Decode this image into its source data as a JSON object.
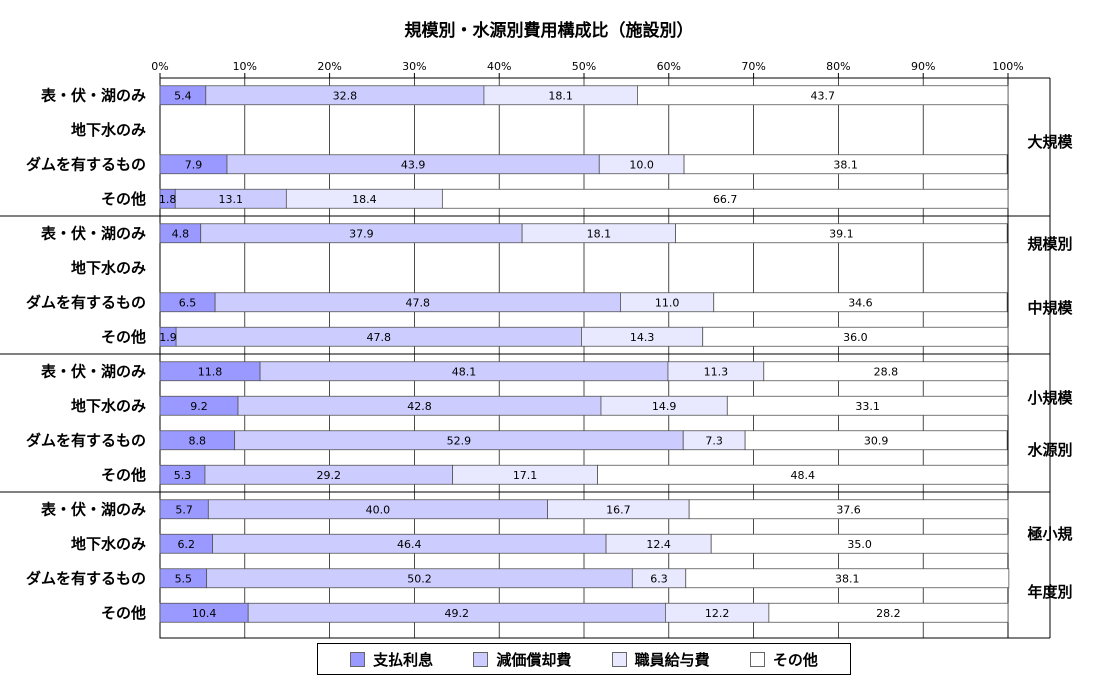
{
  "chart_data": {
    "type": "bar",
    "orientation": "horizontal",
    "stacked": true,
    "title": "規模別・水源別費用構成比（施設別）",
    "x_tick_labels": [
      "0%",
      "10%",
      "20%",
      "30%",
      "40%",
      "50%",
      "60%",
      "70%",
      "80%",
      "90%",
      "100%"
    ],
    "xlim": [
      0,
      100
    ],
    "grid": true,
    "legend_position": "bottom",
    "categories": [
      "表・伏・湖のみ",
      "地下水のみ",
      "ダムを有するもの",
      "その他"
    ],
    "groups": [
      {
        "label": "大規模",
        "rows": [
          {
            "category": "表・伏・湖のみ",
            "values": [
              5.4,
              32.8,
              18.1,
              43.7
            ]
          },
          {
            "category": "地下水のみ",
            "values": null
          },
          {
            "category": "ダムを有するもの",
            "values": [
              7.9,
              43.9,
              10.0,
              38.1
            ]
          },
          {
            "category": "その他",
            "values": [
              1.8,
              13.1,
              18.4,
              66.7
            ]
          }
        ]
      },
      {
        "label": "中規模",
        "rows": [
          {
            "category": "表・伏・湖のみ",
            "values": [
              4.8,
              37.9,
              18.1,
              39.1
            ]
          },
          {
            "category": "地下水のみ",
            "values": null
          },
          {
            "category": "ダムを有するもの",
            "values": [
              6.5,
              47.8,
              11.0,
              34.6
            ]
          },
          {
            "category": "その他",
            "values": [
              1.9,
              47.8,
              14.3,
              36.0
            ]
          }
        ]
      },
      {
        "label": "小規模",
        "rows": [
          {
            "category": "表・伏・湖のみ",
            "values": [
              11.8,
              48.1,
              11.3,
              28.8
            ]
          },
          {
            "category": "地下水のみ",
            "values": [
              9.2,
              42.8,
              14.9,
              33.1
            ]
          },
          {
            "category": "ダムを有するもの",
            "values": [
              8.8,
              52.9,
              7.3,
              30.9
            ]
          },
          {
            "category": "その他",
            "values": [
              5.3,
              29.2,
              17.1,
              48.4
            ]
          }
        ]
      },
      {
        "label": "極小規",
        "rows": [
          {
            "category": "表・伏・湖のみ",
            "values": [
              5.7,
              40.0,
              16.7,
              37.6
            ]
          },
          {
            "category": "地下水のみ",
            "values": [
              6.2,
              46.4,
              12.4,
              35.0
            ]
          },
          {
            "category": "ダムを有するもの",
            "values": [
              5.5,
              50.2,
              6.3,
              38.1
            ]
          },
          {
            "category": "その他",
            "values": [
              10.4,
              49.2,
              12.2,
              28.2
            ]
          }
        ]
      }
    ],
    "side_labels": [
      "規模別",
      "水源別",
      "年度別"
    ],
    "series": [
      {
        "name": "支払利息",
        "color": "#9999ff"
      },
      {
        "name": "減価償却費",
        "color": "#ccccff"
      },
      {
        "name": "職員給与費",
        "color": "#e8e8ff"
      },
      {
        "name": "その他",
        "color": "#ffffff"
      }
    ]
  }
}
